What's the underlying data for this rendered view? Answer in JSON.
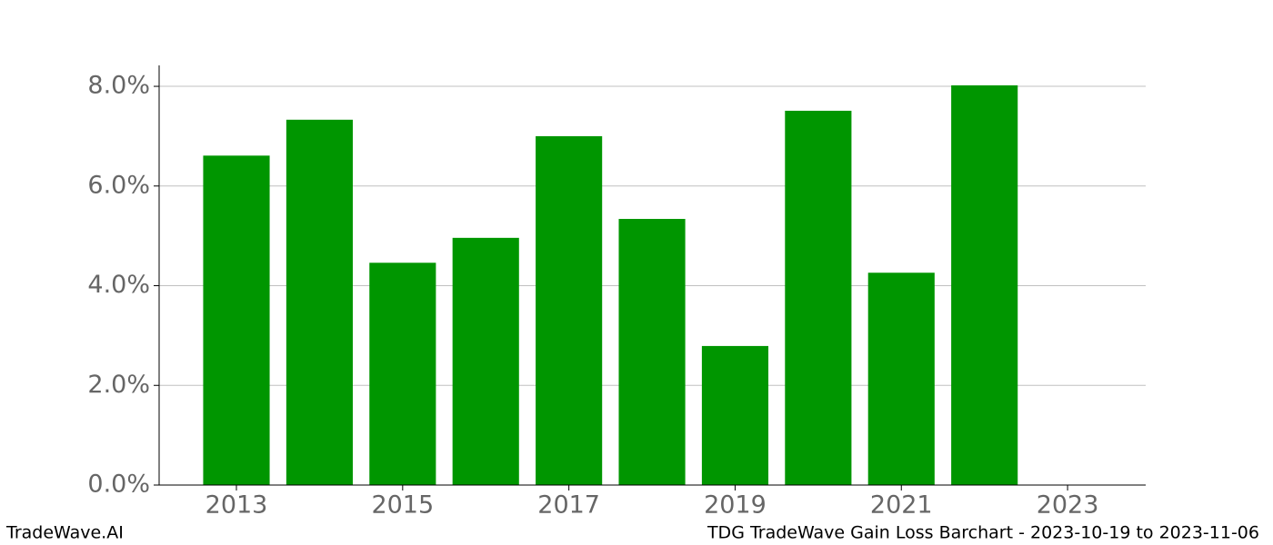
{
  "chart_data": {
    "type": "bar",
    "x": [
      2013,
      2014,
      2015,
      2016,
      2017,
      2018,
      2019,
      2020,
      2021,
      2022
    ],
    "values": [
      6.61,
      7.33,
      4.46,
      4.96,
      7.0,
      5.34,
      2.79,
      7.51,
      4.26,
      8.02
    ],
    "color": "#009600",
    "xlim": [
      2012.07,
      2023.94
    ],
    "xticks": [
      2013,
      2015,
      2017,
      2019,
      2021,
      2023
    ],
    "ylim": [
      0,
      8.42
    ],
    "yticks": [
      {
        "value": 0,
        "label": "0.0%"
      },
      {
        "value": 2,
        "label": "2.0%"
      },
      {
        "value": 4,
        "label": "4.0%"
      },
      {
        "value": 6,
        "label": "6.0%"
      },
      {
        "value": 8,
        "label": "8.0%"
      }
    ],
    "grid": true
  },
  "footer": {
    "left": "TradeWave.AI",
    "right": "TDG TradeWave Gain Loss Barchart - 2023-10-19 to 2023-11-06"
  }
}
